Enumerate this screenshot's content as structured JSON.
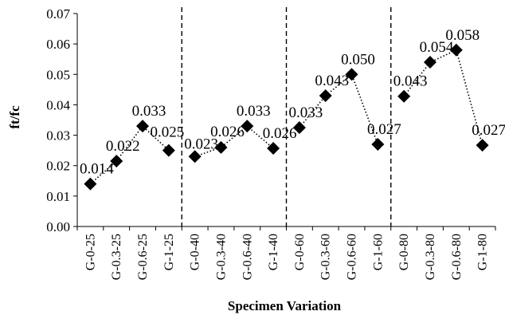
{
  "chart_data": {
    "type": "line",
    "title": "",
    "xlabel": "Specimen Variation",
    "ylabel": "ft/fc",
    "ylim": [
      0,
      0.07
    ],
    "yticks": [
      "0.00",
      "0.01",
      "0.02",
      "0.03",
      "0.04",
      "0.05",
      "0.06",
      "0.07"
    ],
    "grid": false,
    "legend": "none",
    "marker": "diamond",
    "line_style": "dotted",
    "color": "#000000",
    "categories": [
      "G-0-25",
      "G-0.3-25",
      "G-0.6-25",
      "G-1-25",
      "G-0-40",
      "G-0.3-40",
      "G-0.6-40",
      "G-1-40",
      "G-0-60",
      "G-0.3-60",
      "G-0.6-60",
      "G-1-60",
      "G-0-80",
      "G-0.3-80",
      "G-0.6-80",
      "G-1-80"
    ],
    "values": [
      0.014,
      0.0215,
      0.033,
      0.025,
      0.023,
      0.026,
      0.033,
      0.0257,
      0.0325,
      0.043,
      0.05,
      0.027,
      0.0428,
      0.054,
      0.058,
      0.0267
    ],
    "data_labels": [
      "0.014",
      "0.022",
      "0.033",
      "0.025",
      "0.023",
      "0.026",
      "0.033",
      "0.026",
      "0.033",
      "0.043",
      "0.050",
      "0.027",
      "0.043",
      "0.054",
      "0.058",
      "0.027"
    ],
    "groups": [
      [
        0,
        3
      ],
      [
        4,
        7
      ],
      [
        8,
        11
      ],
      [
        12,
        15
      ]
    ],
    "group_separators": "dashed vertical lines between groups"
  }
}
